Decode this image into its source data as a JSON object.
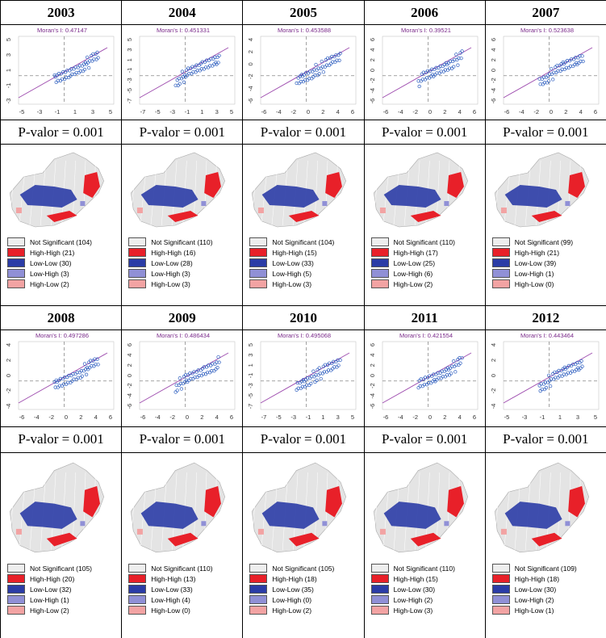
{
  "panels": [
    {
      "year": "2003",
      "moran": "Moran's I: 0.47147",
      "y_ticks": [
        "5",
        "3",
        "1",
        "-1",
        "-3"
      ],
      "x_ticks": [
        "-5",
        "-3",
        "-1",
        "1",
        "3",
        "5"
      ],
      "p_value": "P-valor = 0.001",
      "legend": [
        "Not Significant (104)",
        "High-High (21)",
        "Low-Low (30)",
        "Low-High (3)",
        "High-Low (2)"
      ]
    },
    {
      "year": "2004",
      "moran": "Moran's I: 0.451331",
      "y_ticks": [
        "5",
        "3",
        "1",
        "-1",
        "-3",
        "-5",
        "-7"
      ],
      "x_ticks": [
        "-7",
        "-5",
        "-3",
        "-1",
        "1",
        "3",
        "5"
      ],
      "p_value": "P-valor = 0.001",
      "legend": [
        "Not Significant (110)",
        "High-High (16)",
        "Low-Low (28)",
        "Low-High (3)",
        "High-Low (3)"
      ]
    },
    {
      "year": "2005",
      "moran": "Moran's I: 0.453588",
      "y_ticks": [
        "4",
        "2",
        "0",
        "-2",
        "-4",
        "-6"
      ],
      "x_ticks": [
        "-6",
        "-4",
        "-2",
        "0",
        "2",
        "4",
        "6"
      ],
      "p_value": "P-valor = 0.001",
      "legend": [
        "Not Significant (104)",
        "High-High (15)",
        "Low-Low (33)",
        "Low-High (5)",
        "High-Low (3)"
      ]
    },
    {
      "year": "2006",
      "moran": "Moran's I: 0.39521",
      "y_ticks": [
        "6",
        "4",
        "2",
        "0",
        "-2",
        "-4",
        "-6"
      ],
      "x_ticks": [
        "-6",
        "-4",
        "-2",
        "0",
        "2",
        "4",
        "6"
      ],
      "p_value": "P-valor = 0.001",
      "legend": [
        "Not Significant (110)",
        "High-High (17)",
        "Low-Low (25)",
        "Low-High (6)",
        "High-Low (2)"
      ]
    },
    {
      "year": "2007",
      "moran": "Moran's I: 0.523638",
      "y_ticks": [
        "6",
        "4",
        "2",
        "0",
        "-2",
        "-4",
        "-6"
      ],
      "x_ticks": [
        "-6",
        "-4",
        "-2",
        "0",
        "2",
        "4",
        "6"
      ],
      "p_value": "P-valor = 0.001",
      "legend": [
        "Not Significant (99)",
        "High-High (21)",
        "Low-Low (39)",
        "Low-High (1)",
        "High-Low (0)"
      ]
    },
    {
      "year": "2008",
      "moran": "Moran's I: 0.497286",
      "y_ticks": [
        "4",
        "2",
        "0",
        "-2",
        "-4"
      ],
      "x_ticks": [
        "-6",
        "-4",
        "-2",
        "0",
        "2",
        "4",
        "6"
      ],
      "p_value": "P-valor = 0.001",
      "legend": [
        "Not Significant (105)",
        "High-High (20)",
        "Low-Low (32)",
        "Low-High (1)",
        "High-Low (2)"
      ]
    },
    {
      "year": "2009",
      "moran": "Moran's I: 0.486434",
      "y_ticks": [
        "6",
        "4",
        "2",
        "0",
        "-2",
        "-4",
        "-6"
      ],
      "x_ticks": [
        "-6",
        "-4",
        "-2",
        "0",
        "2",
        "4",
        "6"
      ],
      "p_value": "P-valor = 0.001",
      "legend": [
        "Not Significant (110)",
        "High-High (13)",
        "Low-Low (33)",
        "Low-High (4)",
        "High-Low (0)"
      ]
    },
    {
      "year": "2010",
      "moran": "Moran's I: 0.495068",
      "y_ticks": [
        "5",
        "3",
        "1",
        "-1",
        "-3",
        "-5",
        "-7"
      ],
      "x_ticks": [
        "-7",
        "-5",
        "-3",
        "-1",
        "1",
        "3",
        "5"
      ],
      "p_value": "P-valor = 0.001",
      "legend": [
        "Not Significant (105)",
        "High-High (18)",
        "Low-Low (35)",
        "Low-High (0)",
        "High-Low (2)"
      ]
    },
    {
      "year": "2011",
      "moran": "Moran's I: 0.421554",
      "y_ticks": [
        "6",
        "4",
        "2",
        "0",
        "-2",
        "-4",
        "-6"
      ],
      "x_ticks": [
        "-6",
        "-4",
        "-2",
        "0",
        "2",
        "4",
        "6"
      ],
      "p_value": "P-valor = 0.001",
      "legend": [
        "Not Significant (110)",
        "High-High (15)",
        "Low-Low (30)",
        "Low-High (2)",
        "High-Low (3)"
      ]
    },
    {
      "year": "2012",
      "moran": "Moran's I: 0.443464",
      "y_ticks": [
        "4",
        "2",
        "0",
        "-2",
        "-4"
      ],
      "x_ticks": [
        "-5",
        "-3",
        "-1",
        "1",
        "3",
        "5"
      ],
      "p_value": "P-valor = 0.001",
      "legend": [
        "Not Significant (109)",
        "High-High (18)",
        "Low-Low (30)",
        "Low-High (2)",
        "High-Low (1)"
      ]
    }
  ]
}
